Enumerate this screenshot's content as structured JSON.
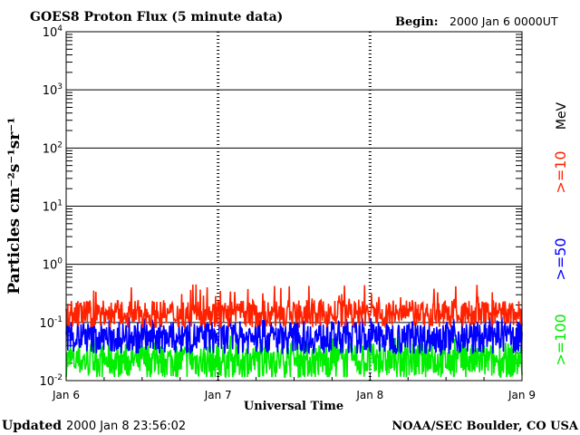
{
  "chart_data": {
    "type": "line",
    "title": "GOES8 Proton Flux (5 minute data)",
    "begin_label": "Begin:",
    "begin_value": "2000 Jan 6 0000UT",
    "ylabel": "Particles cm⁻²s⁻¹sr⁻¹",
    "xlabel": "Universal Time",
    "yscale": "log",
    "ylim": [
      0.01,
      10000
    ],
    "ytick_labels": [
      {
        "base": "10",
        "exp": "-2",
        "value": 0.01
      },
      {
        "base": "10",
        "exp": "-1",
        "value": 0.1
      },
      {
        "base": "10",
        "exp": "0",
        "value": 1
      },
      {
        "base": "10",
        "exp": "1",
        "value": 10
      },
      {
        "base": "10",
        "exp": "2",
        "value": 100
      },
      {
        "base": "10",
        "exp": "3",
        "value": 1000
      },
      {
        "base": "10",
        "exp": "4",
        "value": 10000
      }
    ],
    "xlim_hours": [
      0,
      72
    ],
    "xtick_labels": [
      {
        "label": "Jan 6",
        "hours": 0
      },
      {
        "label": "Jan 7",
        "hours": 24
      },
      {
        "label": "Jan 8",
        "hours": 48
      },
      {
        "label": "Jan 9",
        "hours": 72
      }
    ],
    "energy_unit": "MeV",
    "grid": "horizontal lines at each decade; dashed vertical markers at day boundaries",
    "series": [
      {
        "name": ">=10",
        "color": "#ff2200",
        "mean": 0.14,
        "spread": 0.55,
        "spike_max": 0.45
      },
      {
        "name": ">=50",
        "color": "#0000ff",
        "mean": 0.055,
        "spread": 0.65,
        "spike_max": 0.13
      },
      {
        "name": ">=100",
        "color": "#00ee00",
        "mean": 0.022,
        "spread": 0.7,
        "spike_max": 0.06
      }
    ]
  },
  "footer": {
    "updated_label": "Updated",
    "updated_value": "2000 Jan  8 23:56:02",
    "source": "NOAA/SEC Boulder, CO USA"
  }
}
